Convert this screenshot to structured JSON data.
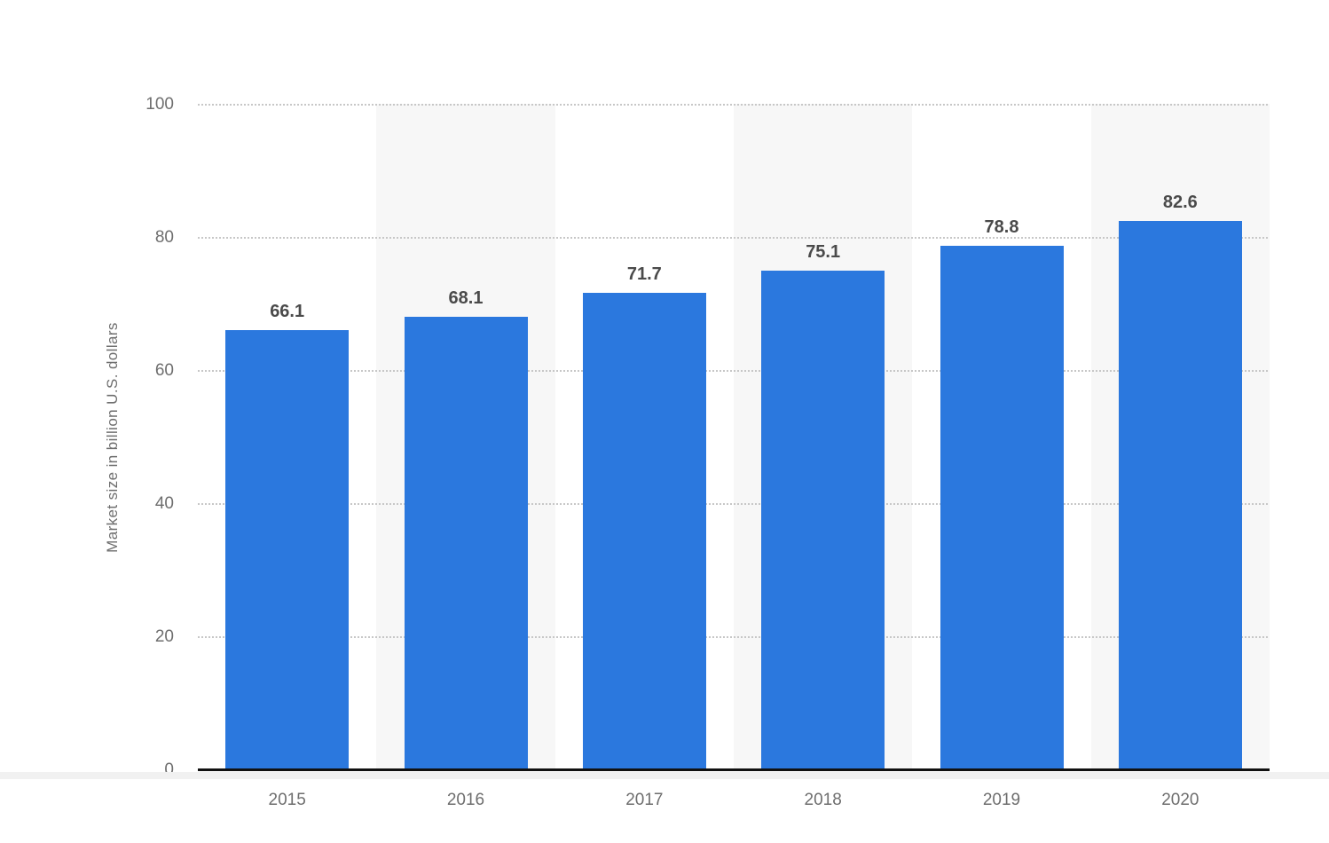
{
  "chart_data": {
    "type": "bar",
    "categories": [
      "2015",
      "2016",
      "2017",
      "2018",
      "2019",
      "2020"
    ],
    "values": [
      66.1,
      68.1,
      71.7,
      75.1,
      78.8,
      82.6
    ],
    "ylabel": "Market size in billion U.S. dollars",
    "ylim": [
      0,
      100
    ],
    "yticks": [
      0,
      20,
      40,
      60,
      80,
      100
    ],
    "grid": "dotted-horizontal",
    "legend": "none",
    "colors": {
      "bar": "#2b78de",
      "band": "#f7f7f7",
      "gridline": "#c7c7c7",
      "axis_line": "#111111",
      "tick_label": "#6e6e6e",
      "value_label": "#4a4a4a",
      "bottom_strip": "#f1f1f1",
      "background": "#ffffff"
    }
  }
}
